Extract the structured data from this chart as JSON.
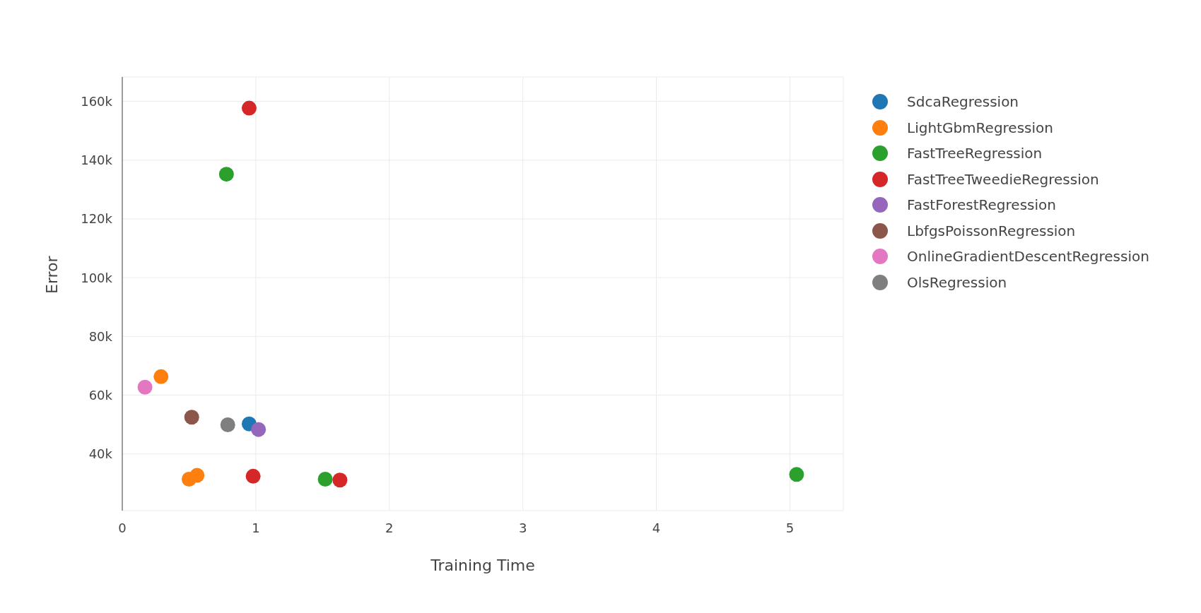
{
  "chart_data": {
    "type": "scatter",
    "xlabel": "Training Time",
    "ylabel": "Error",
    "xlim": [
      0,
      5.4
    ],
    "ylim": [
      20700,
      168300
    ],
    "xticks": [
      0,
      1,
      2,
      3,
      4,
      5
    ],
    "yticks": [
      {
        "value": 40000,
        "label": "40k"
      },
      {
        "value": 60000,
        "label": "60k"
      },
      {
        "value": 80000,
        "label": "80k"
      },
      {
        "value": 100000,
        "label": "100k"
      },
      {
        "value": 120000,
        "label": "120k"
      },
      {
        "value": 140000,
        "label": "140k"
      },
      {
        "value": 160000,
        "label": "160k"
      }
    ],
    "grid": true,
    "legend": "top right",
    "marker": "circle",
    "series": [
      {
        "name": "SdcaRegression",
        "color": "#1f77b4",
        "x": [
          0.95
        ],
        "values": [
          50200
        ]
      },
      {
        "name": "LightGbmRegression",
        "color": "#ff7f0e",
        "x": [
          0.29,
          0.5,
          0.56
        ],
        "values": [
          66300,
          31400,
          32700
        ]
      },
      {
        "name": "FastTreeRegression",
        "color": "#2ca02c",
        "x": [
          0.78,
          1.52,
          5.05
        ],
        "values": [
          135200,
          31400,
          33000
        ]
      },
      {
        "name": "FastTreeTweedieRegression",
        "color": "#d62728",
        "x": [
          0.95,
          0.98,
          1.63
        ],
        "values": [
          157700,
          32400,
          31100
        ]
      },
      {
        "name": "FastForestRegression",
        "color": "#9467bd",
        "x": [
          1.02
        ],
        "values": [
          48300
        ]
      },
      {
        "name": "LbfgsPoissonRegression",
        "color": "#8c564b",
        "x": [
          0.52
        ],
        "values": [
          52500
        ]
      },
      {
        "name": "OnlineGradientDescentRegression",
        "color": "#e377c2",
        "x": [
          0.17
        ],
        "values": [
          62700
        ]
      },
      {
        "name": "OlsRegression",
        "color": "#7f7f7f",
        "x": [
          0.79
        ],
        "values": [
          49900
        ]
      }
    ]
  }
}
